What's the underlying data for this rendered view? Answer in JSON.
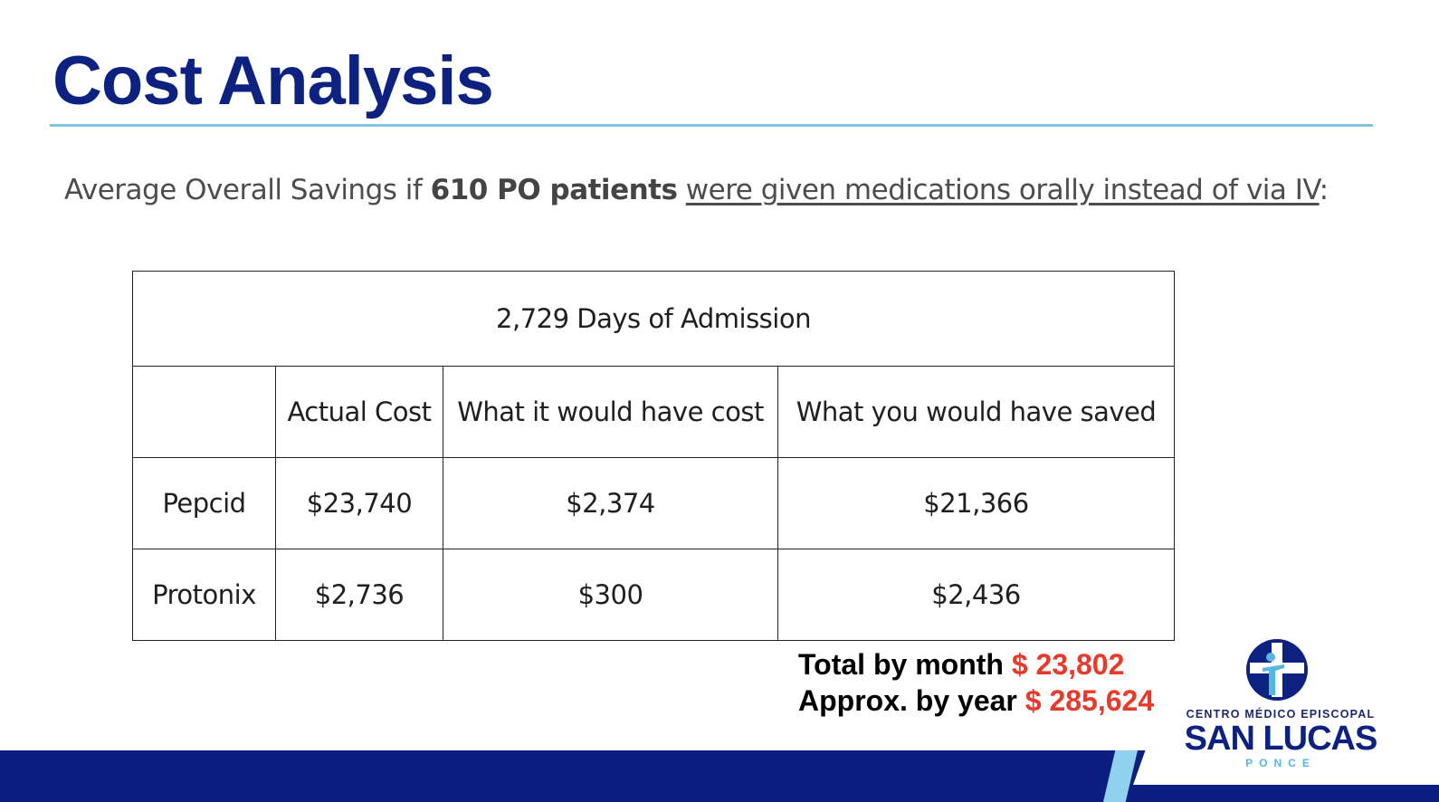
{
  "slide": {
    "title": "Cost Analysis",
    "subtitle": {
      "prefix": "Average Overall Savings if ",
      "bold": "610 PO patients",
      "space": " ",
      "underlined": "were given medications orally instead of via IV",
      "suffix": ":"
    }
  },
  "table": {
    "header": "2,729 Days of Admission",
    "columns": [
      "",
      "Actual Cost",
      "What it would have cost",
      "What you would have saved"
    ],
    "rows": [
      {
        "label": "Pepcid",
        "actual": "$23,740",
        "would_cost": "$2,374",
        "saved": "$21,366"
      },
      {
        "label": "Protonix",
        "actual": "$2,736",
        "would_cost": "$300",
        "saved": "$2,436"
      }
    ]
  },
  "totals": {
    "month_label": "Total by month ",
    "month_value": "$ 23,802",
    "year_label": "Approx. by year ",
    "year_value": "$ 285,624"
  },
  "logo": {
    "top_text": "CENTRO MÉDICO EPISCOPAL",
    "main_text": "SAN LUCAS",
    "bottom_text": "PONCE",
    "icon": "cross-figure-icon"
  },
  "colors": {
    "brand_navy": "#0d2180",
    "accent_light_blue": "#7cc6e3",
    "highlight_red": "#e8392b"
  }
}
